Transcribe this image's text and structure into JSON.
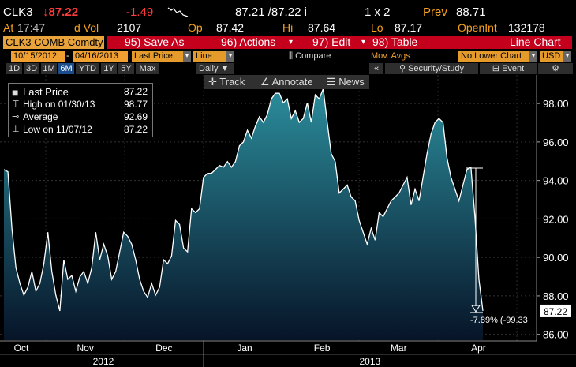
{
  "header": {
    "ticker": "CLK3",
    "last": "↓87.22",
    "change": "-1.49",
    "bid_ask": "87.21 /87.22 i",
    "size": "1 x 2",
    "prev_label": "Prev",
    "prev": "88.71",
    "at_label": "At",
    "time": "17:47",
    "vol_label": "d Vol",
    "vol": "2107",
    "open_label": "Op",
    "open": "87.42",
    "high_label": "Hi",
    "high": "87.64",
    "low_label": "Lo",
    "low": "87.17",
    "oi_label": "OpenInt",
    "oi": "132178"
  },
  "toolbar": {
    "security": "CLK3 COMB Comdty",
    "menu": [
      "95) Save As",
      "96) Actions",
      "97) Edit",
      "98) Table"
    ],
    "view": "Line Chart",
    "start": "10/15/2012",
    "end": "04/16/2013",
    "field": "Last Price",
    "style": "Line",
    "compare": "Compare",
    "mov_avgs": "Mov. Avgs",
    "lower": "No Lower Chart",
    "currency": "USD",
    "periods": [
      "1D",
      "3D",
      "1M",
      "6M",
      "YTD",
      "1Y",
      "5Y",
      "Max"
    ],
    "selected_period": "6M",
    "frequency": "Daily",
    "security_study": "Security/Study",
    "event": "Event",
    "chart_tools": [
      "Track",
      "Annotate",
      "News"
    ]
  },
  "chart_data": {
    "type": "area",
    "color": "#ffffff",
    "fill_top": "#2b8d9c",
    "fill_bottom": "#071428",
    "grid": true,
    "legend": [
      {
        "label": "Last Price",
        "value": 87.22
      },
      {
        "label": "High on 01/30/13",
        "value": 98.77
      },
      {
        "label": "Average",
        "value": 92.69
      },
      {
        "label": "Low on 11/07/12",
        "value": 87.22
      }
    ],
    "annotation": "-7.89% (-99.33",
    "values": [
      94.57,
      94.45,
      91.51,
      89.47,
      88.65,
      88.04,
      88.45,
      89.27,
      88.24,
      88.65,
      89.67,
      91.31,
      89.27,
      88.04,
      87.22,
      89.88,
      88.86,
      89.06,
      88.24,
      88.98,
      89.27,
      88.65,
      89.47,
      91.31,
      89.88,
      90.69,
      90.08,
      88.86,
      89.27,
      90.29,
      91.31,
      91.1,
      90.69,
      89.88,
      88.86,
      88.24,
      87.92,
      88.65,
      88.04,
      88.45,
      89.88,
      89.67,
      90.08,
      91.92,
      91.71,
      90.49,
      90.29,
      92.53,
      92.33,
      92.53,
      94.16,
      94.37,
      94.37,
      94.57,
      94.78,
      94.69,
      94.98,
      94.69,
      94.98,
      95.8,
      96.0,
      96.61,
      96.2,
      96.82,
      97.31,
      97.02,
      97.43,
      98.24,
      98.53,
      98.53,
      98.04,
      98.24,
      97.22,
      97.63,
      97.02,
      97.22,
      98.04,
      97.02,
      98.45,
      98.24,
      98.77,
      97.02,
      95.39,
      94.98,
      93.35,
      93.55,
      93.76,
      93.14,
      92.94,
      91.92,
      91.31,
      90.69,
      91.51,
      90.9,
      92.33,
      92.12,
      92.53,
      92.94,
      93.14,
      93.35,
      93.76,
      94.16,
      92.73,
      93.55,
      92.94,
      94.16,
      95.39,
      96.41,
      97.02,
      97.22,
      97.02,
      95.18,
      94.16,
      93.55,
      92.94,
      93.76,
      94.57,
      94.69,
      92.12,
      88.86,
      87.22
    ],
    "xlim": [
      0,
      120
    ],
    "xticks": [
      {
        "value": 4.35,
        "label": "Oct"
      },
      {
        "value": 20.4,
        "label": "Nov"
      },
      {
        "value": 40.1,
        "label": "Dec"
      },
      {
        "value": 60.3,
        "label": "Jan"
      },
      {
        "value": 79.7,
        "label": "Feb"
      },
      {
        "value": 98.9,
        "label": "Mar"
      },
      {
        "value": 118.9,
        "label": "Apr"
      }
    ],
    "xticks2": [
      {
        "value": 24.9,
        "label": "2012"
      },
      {
        "value": 91.7,
        "label": "2013"
      }
    ],
    "ylim": [
      85.7,
      99.4
    ],
    "yticks": [
      {
        "value": 86,
        "label": "86.00"
      },
      {
        "value": 88,
        "label": "88.00"
      },
      {
        "value": 90,
        "label": "90.00"
      },
      {
        "value": 92,
        "label": "92.00"
      },
      {
        "value": 94,
        "label": "94.00"
      },
      {
        "value": 96,
        "label": "96.00"
      },
      {
        "value": 98,
        "label": "98.00"
      }
    ]
  }
}
